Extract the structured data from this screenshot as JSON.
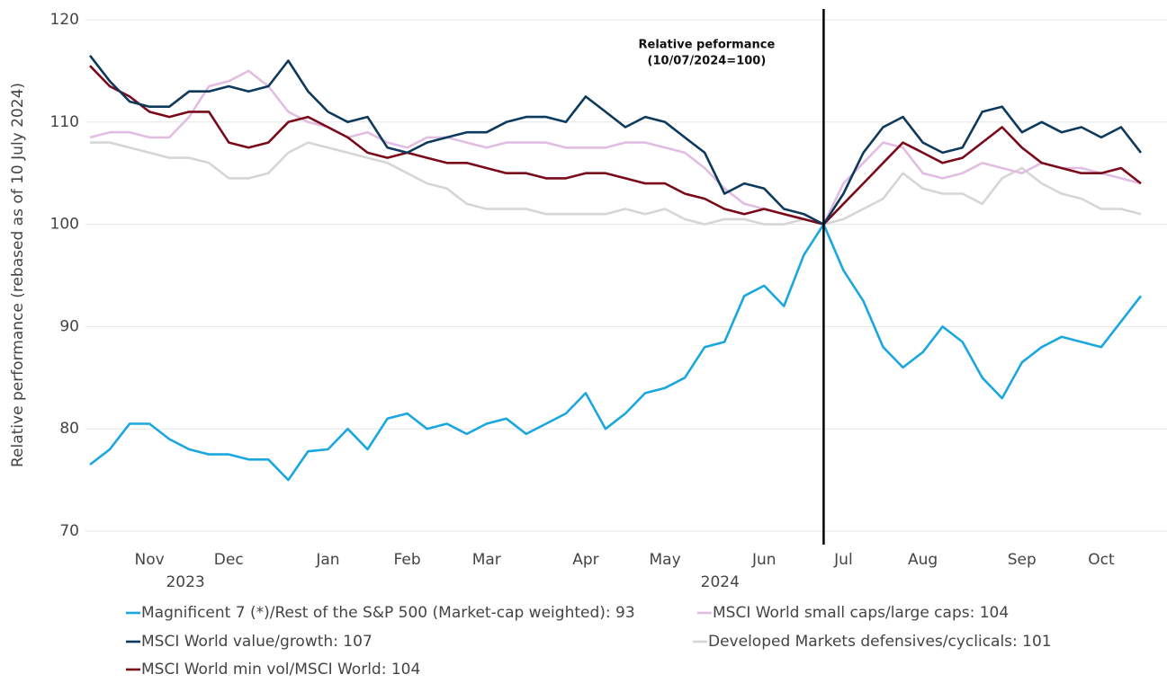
{
  "chart_data": {
    "type": "line",
    "y_label": "Relative performance (rebased as of 10 July 2024)",
    "annotation": [
      "Relative peformance",
      "(10/07/2024=100)"
    ],
    "categories": [
      null,
      null,
      null,
      "Nov",
      null,
      null,
      null,
      "Dec",
      null,
      null,
      null,
      null,
      "Jan",
      null,
      null,
      null,
      "Feb",
      null,
      null,
      null,
      "Mar",
      null,
      null,
      null,
      null,
      "Apr",
      null,
      null,
      null,
      "May",
      null,
      null,
      null,
      null,
      "Jun",
      null,
      null,
      null,
      "Jul",
      null,
      null,
      null,
      "Aug",
      null,
      null,
      null,
      null,
      "Sep",
      null,
      null,
      null,
      "Oct",
      null,
      null
    ],
    "year_labels": [
      "2023",
      "2024"
    ],
    "ylim": [
      70,
      120
    ],
    "yticks": [
      70,
      80,
      90,
      100,
      110,
      120
    ],
    "grid": true,
    "series": [
      {
        "name": "Magnificent 7 (*)/Rest of the S&P 500 (Market-cap weighted): 93",
        "color": "#1aa7e0",
        "values": [
          76.5,
          78,
          80.5,
          80.5,
          79,
          78,
          77.5,
          77.5,
          77,
          77,
          75,
          77.8,
          78,
          80,
          78,
          81,
          81.5,
          80,
          80.5,
          79.5,
          80.5,
          81,
          79.5,
          80.5,
          81.5,
          83.5,
          80,
          81.5,
          83.5,
          84,
          85,
          88,
          88.5,
          93,
          94,
          92,
          97,
          100,
          95.5,
          92.5,
          88,
          86,
          87.5,
          90,
          88.5,
          85,
          83,
          86.5,
          88,
          89,
          88.5,
          88,
          90.5,
          93
        ]
      },
      {
        "name": "MSCI World small caps/large caps: 104",
        "color": "#e2bde2",
        "values": [
          108.5,
          109,
          109,
          108.5,
          108.5,
          110.5,
          113.5,
          114,
          115,
          113.5,
          111,
          110,
          109.5,
          108.5,
          109,
          108,
          107.5,
          108.5,
          108.5,
          108,
          107.5,
          108,
          108,
          108,
          107.5,
          107.5,
          107.5,
          108,
          108,
          107.5,
          107,
          105.5,
          103.5,
          102,
          101.5,
          101,
          100.5,
          100,
          104,
          106,
          108,
          107.5,
          105,
          104.5,
          105,
          106,
          105.5,
          105,
          106,
          105.5,
          105.5,
          105,
          104.5,
          104
        ]
      },
      {
        "name": "MSCI World value/growth: 107",
        "color": "#0d3a5c",
        "values": [
          116.5,
          114,
          112,
          111.5,
          111.5,
          113,
          113,
          113.5,
          113,
          113.5,
          116,
          113,
          111,
          110,
          110.5,
          107.5,
          107,
          108,
          108.5,
          109,
          109,
          110,
          110.5,
          110.5,
          110,
          112.5,
          111,
          109.5,
          110.5,
          110,
          108.5,
          107,
          103,
          104,
          103.5,
          101.5,
          101,
          100,
          103,
          107,
          109.5,
          110.5,
          108,
          107,
          107.5,
          111,
          111.5,
          109,
          110,
          109,
          109.5,
          108.5,
          109.5,
          107
        ]
      },
      {
        "name": "Developed Markets defensives/cyclicals: 101",
        "color": "#d6d6d6",
        "values": [
          108,
          108,
          107.5,
          107,
          106.5,
          106.5,
          106,
          104.5,
          104.5,
          105,
          107,
          108,
          107.5,
          107,
          106.5,
          106,
          105,
          104,
          103.5,
          102,
          101.5,
          101.5,
          101.5,
          101,
          101,
          101,
          101,
          101.5,
          101,
          101.5,
          100.5,
          100,
          100.5,
          100.5,
          100,
          100,
          100.5,
          100,
          100.5,
          101.5,
          102.5,
          105,
          103.5,
          103,
          103,
          102,
          104.5,
          105.5,
          104,
          103,
          102.5,
          101.5,
          101.5,
          101
        ]
      },
      {
        "name": "MSCI World min vol/MSCI World: 104",
        "color": "#7a0a1a",
        "values": [
          115.5,
          113.5,
          112.5,
          111,
          110.5,
          111,
          111,
          108,
          107.5,
          108,
          110,
          110.5,
          109.5,
          108.5,
          107,
          106.5,
          107,
          106.5,
          106,
          106,
          105.5,
          105,
          105,
          104.5,
          104.5,
          105,
          105,
          104.5,
          104,
          104,
          103,
          102.5,
          101.5,
          101,
          101.5,
          101,
          100.5,
          100,
          102,
          104,
          106,
          108,
          107,
          106,
          106.5,
          108,
          109.5,
          107.5,
          106,
          105.5,
          105,
          105,
          105.5,
          104
        ]
      }
    ]
  }
}
